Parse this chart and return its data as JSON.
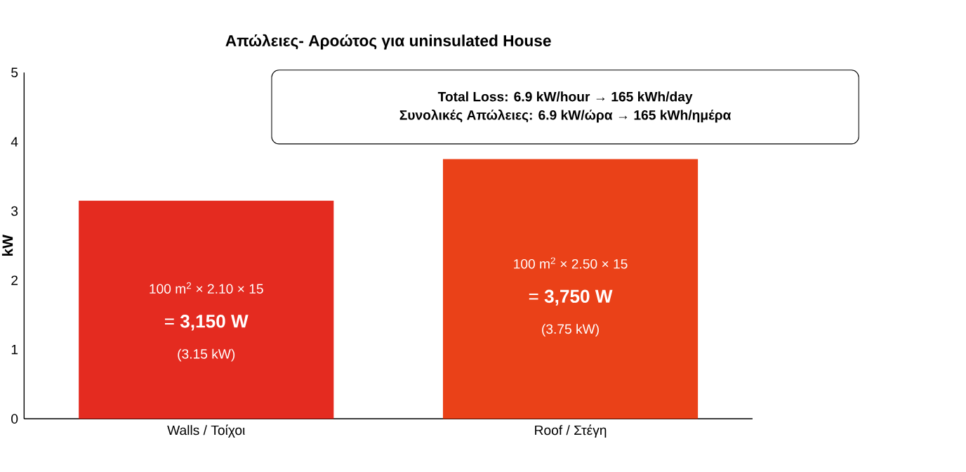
{
  "chart_data": {
    "type": "bar",
    "title": "Απώλειες- Αροώτος για uninsulated House",
    "ylabel": "kW",
    "categories": [
      "Walls / Τοίχοι",
      "Roof / Στέγη"
    ],
    "values": [
      3.15,
      3.75
    ],
    "colors": [
      "#e42b20",
      "#ea4118"
    ],
    "ylim": [
      0,
      5
    ],
    "yticks": [
      0,
      1,
      2,
      3,
      4,
      5
    ],
    "annotations": [
      "Total Loss: 6.9 kW/hour → 165 kWh/day",
      "Συνολικές Απώλειες: 6.9 kW/ώρα → 165 kWh/ημέρα",
      "100 m$^{2}$ × 2.10 × 15",
      "= **3,150 W**",
      "(3.15 kW)",
      "100 m$^{2}$ × 2.50 × 15",
      "= **3,750 W**",
      "(3.75 kW)"
    ]
  }
}
